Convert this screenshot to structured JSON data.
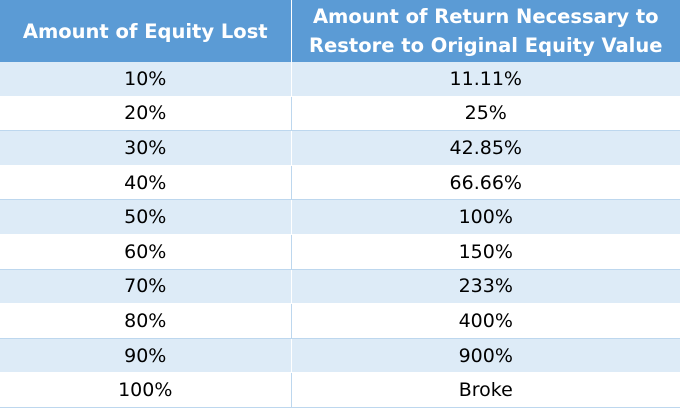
{
  "table": {
    "headers": {
      "col1": "Amount of Equity Lost",
      "col2_line1": "Amount of Return Necessary to",
      "col2_line2": "Restore to Original Equity Value"
    },
    "rows": [
      {
        "lost": "10%",
        "return": "11.11%"
      },
      {
        "lost": "20%",
        "return": "25%"
      },
      {
        "lost": "30%",
        "return": "42.85%"
      },
      {
        "lost": "40%",
        "return": "66.66%"
      },
      {
        "lost": "50%",
        "return": "100%"
      },
      {
        "lost": "60%",
        "return": "150%"
      },
      {
        "lost": "70%",
        "return": "233%"
      },
      {
        "lost": "80%",
        "return": "400%"
      },
      {
        "lost": "90%",
        "return": "900%"
      },
      {
        "lost": "100%",
        "return": "Broke"
      }
    ],
    "colors": {
      "header_bg": "#5b9bd5",
      "header_text": "#ffffff",
      "band_row": "#ddebf7",
      "plain_row": "#ffffff"
    }
  }
}
